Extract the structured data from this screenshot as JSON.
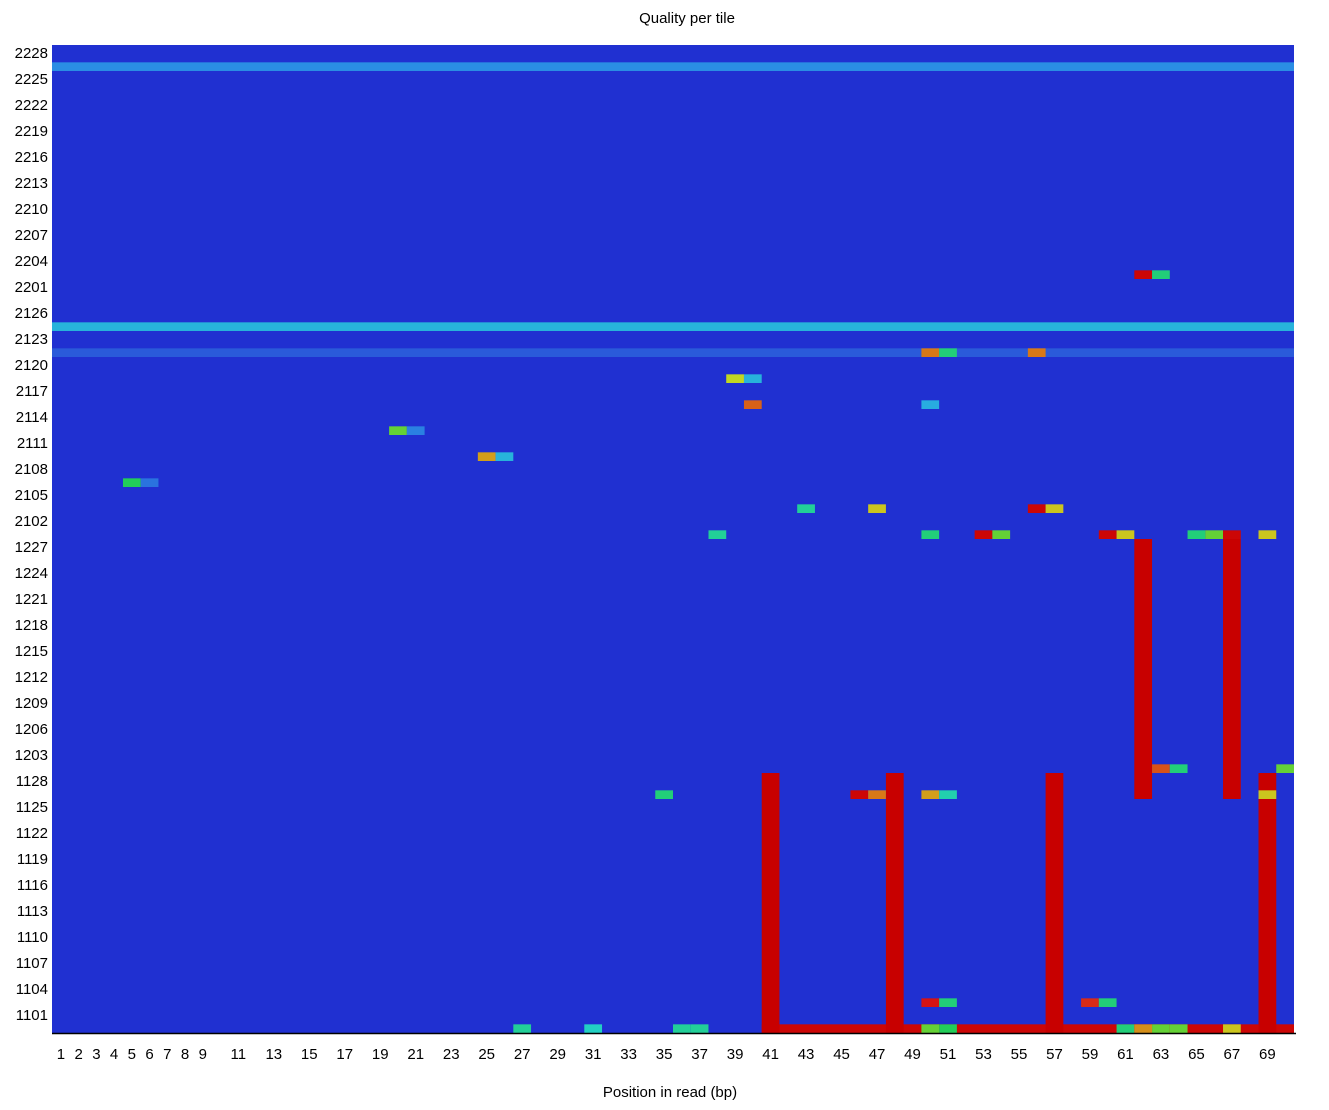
{
  "chart_data": {
    "type": "heatmap",
    "title": "Quality per tile",
    "xlabel": "Position in read (bp)",
    "ylabel": "",
    "grid": false,
    "x_tick_labels": [
      "1",
      "2",
      "3",
      "4",
      "5",
      "6",
      "7",
      "8",
      "9",
      "11",
      "13",
      "15",
      "17",
      "19",
      "21",
      "23",
      "25",
      "27",
      "29",
      "31",
      "33",
      "35",
      "37",
      "39",
      "41",
      "43",
      "45",
      "47",
      "49",
      "51",
      "53",
      "55",
      "57",
      "59",
      "61",
      "63",
      "65",
      "67",
      "69"
    ],
    "y_tick_labels": [
      "2228",
      "2225",
      "2222",
      "2219",
      "2216",
      "2213",
      "2210",
      "2207",
      "2204",
      "2201",
      "2126",
      "2123",
      "2120",
      "2117",
      "2114",
      "2111",
      "2108",
      "2105",
      "2102",
      "1227",
      "1224",
      "1221",
      "1218",
      "1215",
      "1212",
      "1209",
      "1206",
      "1203",
      "1128",
      "1125",
      "1122",
      "1119",
      "1116",
      "1113",
      "1110",
      "1107",
      "1104",
      "1101"
    ],
    "positions": 70,
    "colorscale": [
      "#1a1acc",
      "#2a50d8",
      "#2aa0e8",
      "#22d0c8",
      "#22cc44",
      "#c8d820",
      "#d87818",
      "#d81818",
      "#c80000"
    ],
    "background_value": 0.05,
    "full_columns": [
      {
        "position": 41,
        "from_tile": "1128",
        "to_tile": "1101",
        "value": 1.0
      },
      {
        "position": 48,
        "from_tile": "1128",
        "to_tile": "1101",
        "value": 1.0
      },
      {
        "position": 57,
        "from_tile": "1128",
        "to_tile": "1101",
        "value": 1.0
      },
      {
        "position": 69,
        "from_tile": "1128",
        "to_tile": "1101",
        "value": 1.0
      },
      {
        "position": 62,
        "from_tile": "1227",
        "to_tile": "1128",
        "value": 1.0
      },
      {
        "position": 67,
        "from_tile": "1227",
        "to_tile": "1128",
        "value": 1.0
      }
    ],
    "row_values": [
      {
        "tile": "2228",
        "from": 1,
        "to": 70,
        "value": 0.22
      },
      {
        "tile": "2126",
        "from": 1,
        "to": 70,
        "value": 0.3
      },
      {
        "tile": "2123",
        "from": 1,
        "to": 70,
        "value": 0.14
      },
      {
        "tile": "1101",
        "from": 41,
        "to": 70,
        "value": 0.97
      }
    ],
    "cells": [
      {
        "tile": "2204",
        "position": 62,
        "value": 0.97
      },
      {
        "tile": "2204",
        "position": 63,
        "value": 0.45
      },
      {
        "tile": "2123",
        "position": 50,
        "value": 0.75
      },
      {
        "tile": "2123",
        "position": 51,
        "value": 0.45
      },
      {
        "tile": "2123",
        "position": 56,
        "value": 0.75
      },
      {
        "tile": "2120",
        "position": 39,
        "value": 0.62
      },
      {
        "tile": "2120",
        "position": 40,
        "value": 0.3
      },
      {
        "tile": "2117",
        "position": 40,
        "value": 0.78
      },
      {
        "tile": "2117",
        "position": 50,
        "value": 0.28
      },
      {
        "tile": "2114",
        "position": 20,
        "value": 0.55
      },
      {
        "tile": "2114",
        "position": 21,
        "value": 0.2
      },
      {
        "tile": "2111",
        "position": 25,
        "value": 0.7
      },
      {
        "tile": "2111",
        "position": 26,
        "value": 0.3
      },
      {
        "tile": "2108",
        "position": 5,
        "value": 0.48
      },
      {
        "tile": "2108",
        "position": 6,
        "value": 0.18
      },
      {
        "tile": "2105",
        "position": 43,
        "value": 0.42
      },
      {
        "tile": "2105",
        "position": 47,
        "value": 0.65
      },
      {
        "tile": "2105",
        "position": 56,
        "value": 0.97
      },
      {
        "tile": "2105",
        "position": 57,
        "value": 0.65
      },
      {
        "tile": "2102",
        "position": 38,
        "value": 0.42
      },
      {
        "tile": "2102",
        "position": 50,
        "value": 0.45
      },
      {
        "tile": "2102",
        "position": 53,
        "value": 0.97
      },
      {
        "tile": "2102",
        "position": 54,
        "value": 0.55
      },
      {
        "tile": "2102",
        "position": 60,
        "value": 0.97
      },
      {
        "tile": "2102",
        "position": 61,
        "value": 0.65
      },
      {
        "tile": "2102",
        "position": 65,
        "value": 0.45
      },
      {
        "tile": "2102",
        "position": 66,
        "value": 0.55
      },
      {
        "tile": "2102",
        "position": 67,
        "value": 0.97
      },
      {
        "tile": "2102",
        "position": 69,
        "value": 0.65
      },
      {
        "tile": "1203",
        "position": 63,
        "value": 0.8
      },
      {
        "tile": "1203",
        "position": 64,
        "value": 0.45
      },
      {
        "tile": "1203",
        "position": 70,
        "value": 0.55
      },
      {
        "tile": "1128",
        "position": 35,
        "value": 0.45
      },
      {
        "tile": "1128",
        "position": 46,
        "value": 0.97
      },
      {
        "tile": "1128",
        "position": 47,
        "value": 0.75
      },
      {
        "tile": "1128",
        "position": 50,
        "value": 0.7
      },
      {
        "tile": "1128",
        "position": 51,
        "value": 0.4
      },
      {
        "tile": "1128",
        "position": 69,
        "value": 0.65
      },
      {
        "tile": "1104",
        "position": 50,
        "value": 0.9
      },
      {
        "tile": "1104",
        "position": 51,
        "value": 0.45
      },
      {
        "tile": "1104",
        "position": 59,
        "value": 0.85
      },
      {
        "tile": "1104",
        "position": 60,
        "value": 0.45
      },
      {
        "tile": "1101",
        "position": 27,
        "value": 0.42
      },
      {
        "tile": "1101",
        "position": 31,
        "value": 0.38
      },
      {
        "tile": "1101",
        "position": 36,
        "value": 0.42
      },
      {
        "tile": "1101",
        "position": 37,
        "value": 0.42
      },
      {
        "tile": "1101",
        "position": 50,
        "value": 0.55
      },
      {
        "tile": "1101",
        "position": 51,
        "value": 0.48
      },
      {
        "tile": "1101",
        "position": 61,
        "value": 0.45
      },
      {
        "tile": "1101",
        "position": 62,
        "value": 0.72
      },
      {
        "tile": "1101",
        "position": 63,
        "value": 0.55
      },
      {
        "tile": "1101",
        "position": 64,
        "value": 0.55
      },
      {
        "tile": "1101",
        "position": 67,
        "value": 0.65
      }
    ]
  }
}
